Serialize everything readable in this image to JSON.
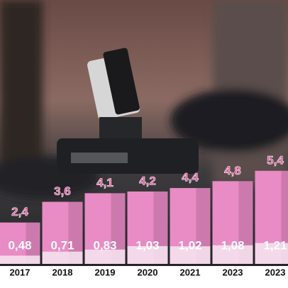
{
  "chart_data": {
    "type": "bar",
    "categories": [
      "2017",
      "2018",
      "2019",
      "2020",
      "2021",
      "2023",
      "2023"
    ],
    "series": [
      {
        "color": "#e98bc5",
        "values": [
          2.4,
          3.6,
          4.1,
          4.2,
          4.4,
          4.8,
          5.4
        ],
        "value_labels": [
          "2,4",
          "3,6",
          "4,1",
          "4,2",
          "4,4",
          "4,8",
          "5,4"
        ]
      },
      {
        "color": "#f6e6f0",
        "values": [
          0.48,
          0.71,
          0.83,
          1.03,
          1.02,
          1.08,
          1.21
        ],
        "value_labels": [
          "0,48",
          "0,71",
          "0,83",
          "1,03",
          "1,02",
          "1,08",
          "1,21"
        ]
      }
    ],
    "ylim": [
      0,
      15
    ]
  }
}
